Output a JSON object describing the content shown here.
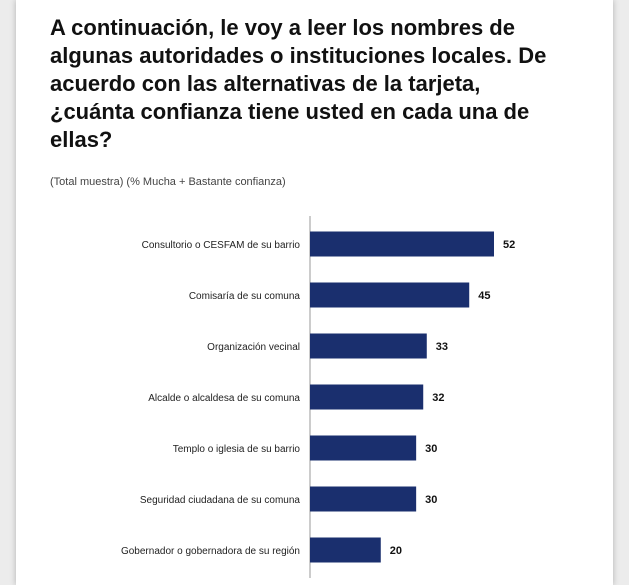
{
  "page": {
    "title": "A continuación, le voy a leer los nombres de algunas autoridades o instituciones locales. De acuerdo con las alternativas de la tarjeta, ¿cuánta confianza tiene usted en cada una de ellas?",
    "subtitle": "(Total muestra) (% Mucha + Bastante confianza)"
  },
  "chart_data": {
    "type": "bar",
    "orientation": "horizontal",
    "title": "A continuación, le voy a leer los nombres de algunas autoridades o instituciones locales. De acuerdo con las alternativas de la tarjeta, ¿cuánta confianza tiene usted en cada una de ellas?",
    "subtitle": "(Total muestra) (% Mucha + Bastante confianza)",
    "categories": [
      "Consultorio o CESFAM de su barrio",
      "Comisaría de su comuna",
      "Organización vecinal",
      "Alcalde o alcaldesa de su comuna",
      "Templo o iglesia de su barrio",
      "Seguridad ciudadana de su comuna",
      "Gobernador o gobernadora de su región"
    ],
    "values": [
      52,
      45,
      33,
      32,
      30,
      30,
      20
    ],
    "bar_color": "#1a2f6e",
    "xlim": [
      0,
      52
    ],
    "grid": false,
    "data_labels": true
  }
}
